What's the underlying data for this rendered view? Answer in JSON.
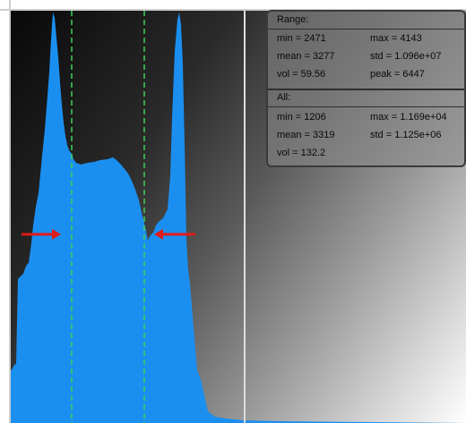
{
  "colors": {
    "histogram_fill": "#1b8ff0",
    "marker_line": "#3fcf5a",
    "arrow": "#e01b1b",
    "cursor_line": "#dddddd"
  },
  "range": {
    "title": "Range:",
    "min": "min = 2471",
    "max": "max = 4143",
    "mean": "mean = 3277",
    "std": "std = 1.096e+07",
    "vol": "vol = 59.56",
    "peak": "peak = 6447"
  },
  "all": {
    "title": "All:",
    "min": "min = 1206",
    "max": "max = 1.169e+04",
    "mean": "mean = 3319",
    "std": "std = 1.125e+06",
    "vol": "vol = 132.2"
  }
}
